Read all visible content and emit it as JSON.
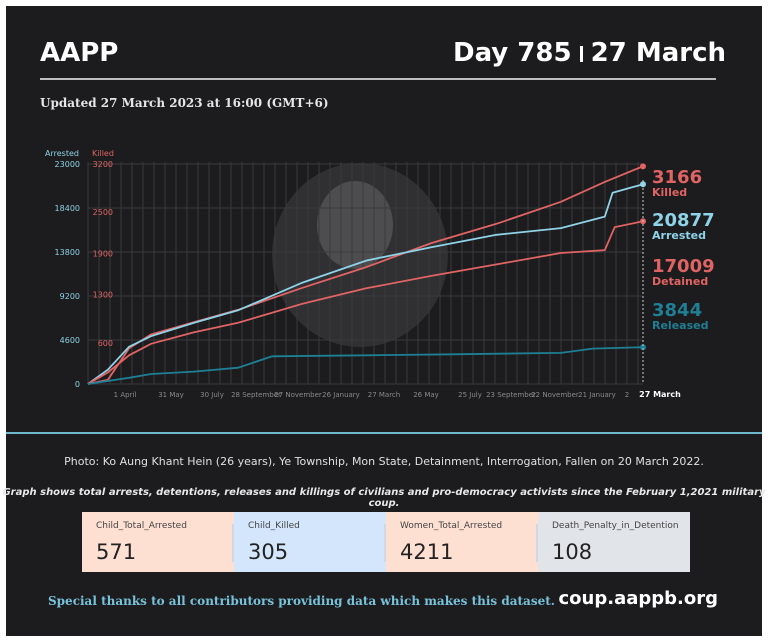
{
  "header": {
    "brand": "AAPP",
    "day": "Day 785",
    "date": "27 March"
  },
  "updated": "Updated 27 March 2023 at 16:00 (GMT+6)",
  "colors": {
    "arrested": "#8fd3e8",
    "killed": "#e06464",
    "detained": "#e06464",
    "released": "#1f7f94",
    "background": "#1c1b1d"
  },
  "chart_data": {
    "type": "line",
    "left_axis": {
      "label": "Arrested",
      "ticks": [
        0,
        4600,
        9200,
        13800,
        18400,
        23000
      ],
      "range": [
        0,
        23000
      ]
    },
    "right_axis": {
      "label": "Killed",
      "ticks": [
        600,
        1300,
        1900,
        2500,
        3200
      ],
      "range": [
        0,
        3200
      ]
    },
    "x_tick_labels": [
      "1 April",
      "31 May",
      "30 July",
      "28 September",
      "27 November",
      "26 January",
      "27 March",
      "26 May",
      "25 July",
      "23 September",
      "22 November",
      "21 January",
      "2",
      "27 March"
    ],
    "x_range": [
      "2021-02-01",
      "2023-03-27"
    ],
    "grid": true,
    "series": [
      {
        "name": "Killed",
        "axis": "right",
        "color": "#e06464",
        "label": "3166",
        "sublabel": "Killed",
        "points": [
          [
            "2021-02-01",
            0
          ],
          [
            "2021-03-01",
            60
          ],
          [
            "2021-03-31",
            520
          ],
          [
            "2021-05-01",
            720
          ],
          [
            "2021-07-01",
            900
          ],
          [
            "2021-09-01",
            1080
          ],
          [
            "2021-12-01",
            1400
          ],
          [
            "2022-03-01",
            1700
          ],
          [
            "2022-06-01",
            2050
          ],
          [
            "2022-09-01",
            2330
          ],
          [
            "2022-12-01",
            2650
          ],
          [
            "2023-02-01",
            2940
          ],
          [
            "2023-03-27",
            3166
          ]
        ]
      },
      {
        "name": "Arrested",
        "axis": "left",
        "color": "#8fd3e8",
        "label": "20877",
        "sublabel": "Arrested",
        "points": [
          [
            "2021-02-01",
            0
          ],
          [
            "2021-03-01",
            1500
          ],
          [
            "2021-03-31",
            3900
          ],
          [
            "2021-05-01",
            5000
          ],
          [
            "2021-07-01",
            6400
          ],
          [
            "2021-09-01",
            7700
          ],
          [
            "2021-12-01",
            10600
          ],
          [
            "2022-03-01",
            12900
          ],
          [
            "2022-06-01",
            14300
          ],
          [
            "2022-09-01",
            15600
          ],
          [
            "2022-12-01",
            16300
          ],
          [
            "2023-02-01",
            17500
          ],
          [
            "2023-02-12",
            20000
          ],
          [
            "2023-03-27",
            20877
          ]
        ]
      },
      {
        "name": "Detained",
        "axis": "left",
        "color": "#e06464",
        "label": "17009",
        "sublabel": "Detained",
        "points": [
          [
            "2021-02-01",
            0
          ],
          [
            "2021-03-01",
            1200
          ],
          [
            "2021-03-31",
            3000
          ],
          [
            "2021-05-01",
            4200
          ],
          [
            "2021-07-01",
            5400
          ],
          [
            "2021-09-01",
            6400
          ],
          [
            "2021-12-01",
            8400
          ],
          [
            "2022-03-01",
            10000
          ],
          [
            "2022-06-01",
            11300
          ],
          [
            "2022-09-01",
            12500
          ],
          [
            "2022-12-01",
            13700
          ],
          [
            "2023-02-01",
            14000
          ],
          [
            "2023-02-15",
            16400
          ],
          [
            "2023-03-27",
            17009
          ]
        ]
      },
      {
        "name": "Released",
        "axis": "left",
        "color": "#1f7f94",
        "label": "3844",
        "sublabel": "Released",
        "points": [
          [
            "2021-02-01",
            0
          ],
          [
            "2021-03-31",
            650
          ],
          [
            "2021-05-01",
            1050
          ],
          [
            "2021-07-01",
            1300
          ],
          [
            "2021-09-01",
            1700
          ],
          [
            "2021-10-19",
            2900
          ],
          [
            "2022-03-01",
            3000
          ],
          [
            "2022-07-01",
            3100
          ],
          [
            "2022-12-01",
            3250
          ],
          [
            "2023-01-15",
            3700
          ],
          [
            "2023-03-27",
            3844
          ]
        ]
      }
    ]
  },
  "caption": {
    "photo": "Photo: Ko Aung Khant Hein (26 years), Ye Township, Mon State,  Detainment, Interrogation, Fallen on 20 March 2022.",
    "note": "Graph shows total arrests, detentions, releases and killings of civilians and pro-democracy activists since the February 1,2021 military coup."
  },
  "stats": [
    {
      "label": "Child_Total_Arrested",
      "value": "571",
      "bg": "#fde0d2"
    },
    {
      "label": "Child_Killed",
      "value": "305",
      "bg": "#d3e6fb"
    },
    {
      "label": "Women_Total_Arrested",
      "value": "4211",
      "bg": "#fde0d2"
    },
    {
      "label": "Death_Penalty_in_Detention",
      "value": "108",
      "bg": "#e1e4e9"
    }
  ],
  "footer": {
    "thanks": "Special thanks to all contributors providing data which makes this dataset.",
    "site": "coup.aappb.org"
  }
}
